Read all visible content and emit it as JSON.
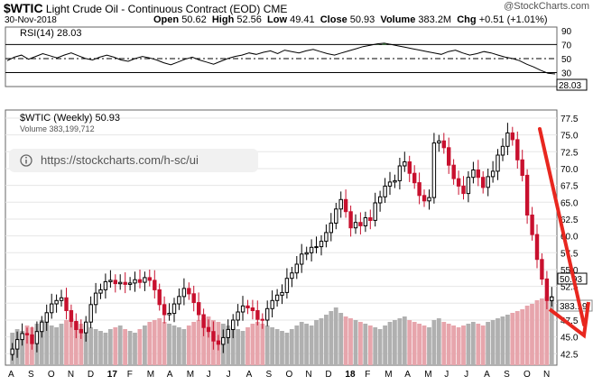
{
  "header": {
    "symbol": "$WTIC",
    "name": "Light Crude Oil - Continuous Contract (EOD)",
    "exchange": "CME",
    "date": "30-Nov-2018",
    "open_label": "Open",
    "open": "50.62",
    "high_label": "High",
    "high": "52.56",
    "low_label": "Low",
    "low": "49.41",
    "close_label": "Close",
    "close": "50.93",
    "volume_label": "Volume",
    "volume": "383.2M",
    "chg_label": "Chg",
    "chg": "+0.51 (+1.01%)",
    "logo": "@StockCharts.com"
  },
  "url_bar": {
    "url": "https://stockcharts.com/h-sc/ui"
  },
  "chart_data": [
    {
      "type": "line",
      "title": "RSI(14) 28.03",
      "ylim": [
        10,
        95
      ],
      "yticks": [
        90,
        70,
        50,
        30
      ],
      "reference_lines": [
        70,
        50,
        30
      ],
      "last_value": "28.03",
      "values": [
        47,
        52,
        55,
        49,
        53,
        57,
        54,
        51,
        55,
        58,
        54,
        50,
        48,
        52,
        55,
        52,
        48,
        46,
        50,
        53,
        51,
        48,
        44,
        41,
        45,
        49,
        52,
        48,
        45,
        42,
        46,
        50,
        53,
        55,
        58,
        56,
        59,
        61,
        57,
        62,
        60,
        58,
        61,
        63,
        60,
        57,
        55,
        58,
        61,
        64,
        67,
        69,
        71,
        72,
        70,
        68,
        66,
        64,
        62,
        60,
        58,
        56,
        60,
        62,
        58,
        55,
        57,
        60,
        58,
        55,
        52,
        50,
        47,
        42,
        38,
        33,
        29,
        28
      ],
      "series": [
        {
          "name": "RSI(14)",
          "color": "#000000",
          "overbought_fill": "#5cb85c"
        }
      ]
    },
    {
      "type": "candlestick",
      "title": "$WTIC (Weekly) 50.93",
      "volume_label": "Volume 383,199,712",
      "ylim": [
        40.8,
        78.7
      ],
      "yticks": [
        77.5,
        75.0,
        72.5,
        70.0,
        67.5,
        65.0,
        62.5,
        60.0,
        57.5,
        55.0,
        52.5,
        50.0,
        47.5,
        45.0,
        42.5
      ],
      "last_price_label": "50.93",
      "last_volume_label": "383.19",
      "x_month_labels": [
        "A",
        "S",
        "O",
        "N",
        "D",
        "17",
        "F",
        "M",
        "A",
        "M",
        "J",
        "J",
        "A",
        "S",
        "O",
        "N",
        "D",
        "18",
        "F",
        "M",
        "A",
        "M",
        "J",
        "J",
        "A",
        "S",
        "O",
        "N"
      ],
      "closes": [
        43.2,
        44.6,
        45.5,
        45.3,
        44.0,
        45.8,
        47.2,
        48.6,
        49.9,
        50.4,
        50.8,
        48.9,
        47.3,
        46.1,
        45.6,
        47.2,
        49.8,
        51.5,
        52.0,
        53.2,
        53.4,
        52.9,
        53.1,
        52.8,
        53.0,
        53.5,
        53.1,
        53.8,
        53.4,
        52.0,
        49.8,
        48.3,
        48.5,
        49.9,
        51.0,
        52.2,
        51.4,
        50.1,
        48.3,
        46.4,
        45.8,
        44.4,
        43.9,
        44.9,
        46.1,
        47.5,
        48.7,
        49.6,
        49.3,
        48.9,
        47.6,
        47.5,
        49.2,
        50.4,
        51.2,
        51.6,
        53.7,
        54.5,
        55.8,
        57.3,
        57.5,
        58.3,
        58.4,
        59.2,
        60.5,
        61.9,
        64.0,
        65.4,
        63.6,
        61.2,
        62.0,
        61.5,
        62.7,
        62.3,
        64.9,
        65.8,
        67.4,
        68.0,
        68.2,
        70.4,
        71.0,
        69.3,
        67.9,
        66.0,
        65.2,
        65.7,
        73.8,
        74.1,
        73.1,
        70.5,
        68.5,
        67.4,
        66.3,
        68.7,
        69.8,
        68.7,
        67.2,
        68.8,
        69.6,
        72.0,
        73.3,
        75.3,
        74.3,
        71.3,
        69.0,
        63.1,
        60.2,
        56.5,
        53.6,
        50.4,
        50.93
      ],
      "volumes": [
        180,
        200,
        190,
        220,
        210,
        230,
        250,
        240,
        220,
        210,
        230,
        250,
        260,
        240,
        230,
        220,
        210,
        200,
        190,
        180,
        200,
        210,
        220,
        200,
        190,
        180,
        200,
        220,
        240,
        250,
        260,
        240,
        230,
        220,
        210,
        200,
        220,
        240,
        250,
        260,
        270,
        250,
        240,
        230,
        220,
        210,
        200,
        190,
        210,
        230,
        240,
        230,
        220,
        210,
        200,
        190,
        180,
        200,
        220,
        240,
        230,
        220,
        250,
        260,
        280,
        300,
        320,
        290,
        270,
        260,
        250,
        240,
        230,
        220,
        210,
        200,
        220,
        240,
        250,
        260,
        270,
        250,
        240,
        230,
        220,
        210,
        250,
        260,
        240,
        230,
        220,
        210,
        220,
        230,
        240,
        230,
        220,
        240,
        250,
        260,
        270,
        280,
        290,
        300,
        310,
        330,
        340,
        360,
        370,
        380,
        383
      ]
    }
  ],
  "colors": {
    "up": "#000000",
    "down": "#c8102e",
    "vol_up": "#b0b0b0",
    "vol_down": "#e7a5ac",
    "arrow": "#e8271f"
  },
  "annotation": {
    "type": "arrow",
    "description": "downward"
  }
}
